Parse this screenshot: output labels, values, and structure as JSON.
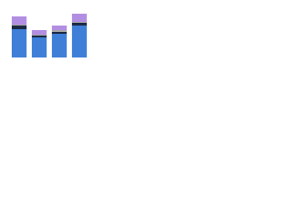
{
  "chart_data": {
    "type": "stacked-bar",
    "categories": [
      null,
      null,
      null,
      null
    ],
    "series": [
      {
        "color": "#3f7fd8",
        "values": [
          31,
          22,
          26,
          35
        ]
      },
      {
        "color": "#1e2a44",
        "values": [
          4,
          2,
          2,
          3
        ]
      },
      {
        "color": "#a6a6a6",
        "values": [
          1,
          1,
          2,
          1
        ]
      },
      {
        "color": "#b28ee2",
        "values": [
          9,
          5,
          5,
          9
        ]
      }
    ],
    "ylim": [
      0,
      50
    ]
  }
}
